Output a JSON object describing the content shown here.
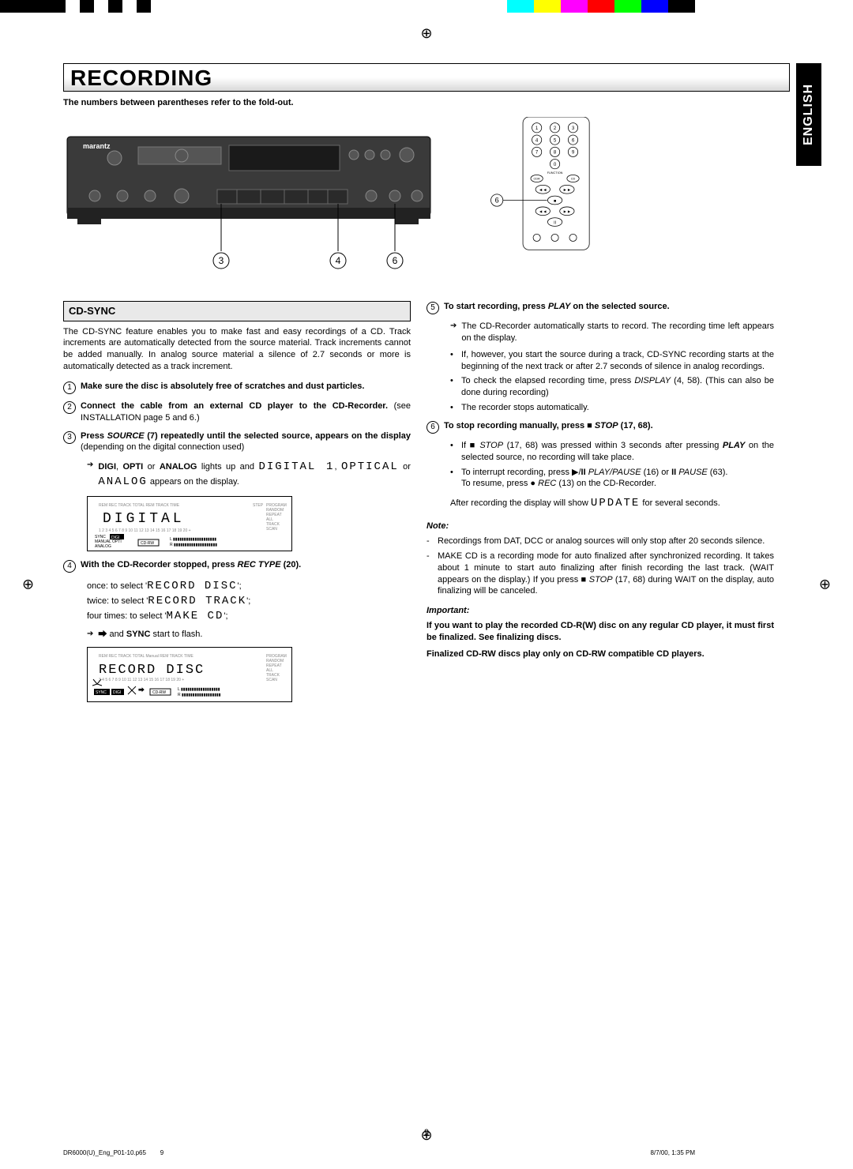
{
  "color_strip": [
    "#000000",
    "#ffffff",
    "#000000",
    "#ffffff",
    "#000000",
    "#ffffff",
    "#000000",
    "#ffffff",
    "#00ffff",
    "#ffffff",
    "#ffff00",
    "#ff00ff",
    "#ff0000",
    "#00ff00",
    "#0000ff",
    "#000000"
  ],
  "title": "RECORDING",
  "lang": "ENGLISH",
  "subtitle": "The numbers between parentheses refer to the fold-out.",
  "device_callouts": [
    "3",
    "4",
    "6"
  ],
  "remote_callout": "6",
  "section_header": "CD-SYNC",
  "intro": "The CD-SYNC feature enables you to make fast and easy recordings of a CD. Track increments are automatically detected from the source material. Track increments cannot be added manually. In analog source material a silence of 2.7 seconds or more is automatically detected as a track increment.",
  "steps_left": [
    {
      "n": "1",
      "html": "<b>Make sure the disc is absolutely free of scratches and dust particles.</b>"
    },
    {
      "n": "2",
      "html": "<b>Connect the cable from an external CD player to the CD-Recorder.</b> (see INSTALLATION page 5 and 6.)"
    },
    {
      "n": "3",
      "html": "<b>Press <i>SOURCE</i> (7) repeatedly until the selected source, appears on the display</b> (depending on the digital connection used)"
    }
  ],
  "step3_arrow": "<b>DIGI</b>, <b>OPTI</b> or <b>ANALOG</b> lights up and <span class='seg'>DIGITAL 1</span>, <span class='seg'>OPTICAL</span> or <span class='seg'>ANALOG</span> appears on the display.",
  "step4": {
    "n": "4",
    "html": "<b>With the CD-Recorder stopped, press <i>REC TYPE</i> (20).</b>"
  },
  "step4_lines": [
    "once: to select '<span class='seg'>RECORD&nbsp;DISC</span>';",
    "twice: to select '<span class='seg'>RECORD&nbsp;TRACK</span>';",
    "four times: to select '<span class='seg'>MAKE&nbsp;CD</span>';"
  ],
  "step4_arrow": "<b>⮕</b> and <b>SYNC</b> start to flash.",
  "lcd1": {
    "main": "DIGITAL",
    "badge": "CD-RW",
    "left_labels": [
      "SYNC",
      "MANUAL",
      "ANALOG"
    ],
    "highlight": "DIGI"
  },
  "lcd2": {
    "main": "RECORD DISC",
    "badge": "CD-RW",
    "sync": "SYNC DIGI"
  },
  "step5": {
    "n": "5",
    "html": "<b>To start recording, press <i>PLAY</i> on the selected source.</b>"
  },
  "step5_arrow": "The CD-Recorder automatically starts to record. The recording time left appears on the display.",
  "step5_bullets": [
    "If, however, you start the source during a track, CD-SYNC recording starts at the beginning of the next track or after 2.7 seconds of silence in analog recordings.",
    "To check the elapsed recording time, press <i>DISPLAY</i> (4, 58). (This can also be done during recording)",
    "The recorder stops automatically."
  ],
  "step6": {
    "n": "6",
    "html": "<b>To stop recording manually, press ■ <i>STOP</i> (17, 68).</b>"
  },
  "step6_bullets": [
    "If ■ <i>STOP</i> (17, 68) was pressed within 3 seconds after pressing <b><i>PLAY</i></b> on the selected source, no recording will take place.",
    "To interrupt recording, press ▶/<b>II</b> <i>PLAY/PAUSE</i> (16) or <b>II</b> <i>PAUSE</i> (63).<br>To resume, press ● <i>REC</i> (13) on the CD-Recorder."
  ],
  "step6_after": "After recording the display will show <span class='seg'>UPDATE</span> for several seconds.",
  "note_head": "Note:",
  "notes": [
    "Recordings from DAT, DCC or analog sources will only stop after 20 seconds silence.",
    "MAKE CD is a recording mode for auto finalized after synchronized recording. It takes about 1 minute to start auto finalizing after finish recording the last track. (WAIT appears on the display.) If you press ■ <i>STOP</i> (17, 68) during WAIT on the display, auto finalizing will be canceled."
  ],
  "important_head": "Important:",
  "important": [
    "If you want to play the recorded CD-R(W) disc on any regular CD player, it must first be finalized. See finalizing discs.",
    "Finalized CD-RW discs play only on CD-RW compatible CD players."
  ],
  "page_number": "9",
  "footer_file": "DR6000(U)_Eng_P01-10.p65",
  "footer_pg": "9",
  "footer_date": "8/7/00, 1:35 PM"
}
